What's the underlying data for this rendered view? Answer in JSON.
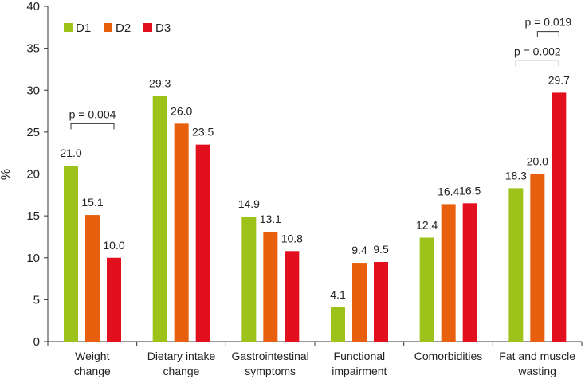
{
  "chart_data": {
    "type": "bar",
    "title": "",
    "xlabel": "",
    "ylabel": "%",
    "ylim": [
      0,
      40
    ],
    "yticks": [
      0,
      5,
      10,
      15,
      20,
      25,
      30,
      35,
      40
    ],
    "grid": false,
    "legend_position": "top-left",
    "categories": [
      [
        "Weight",
        "change"
      ],
      [
        "Dietary intake",
        "change"
      ],
      [
        "Gastrointestinal",
        "symptoms"
      ],
      [
        "Functional",
        "impairment"
      ],
      [
        "Comorbidities"
      ],
      [
        "Fat and muscle",
        "wasting"
      ]
    ],
    "series": [
      {
        "name": "D1",
        "color": "#9dc31b",
        "values": [
          21.0,
          29.3,
          14.9,
          4.1,
          12.4,
          18.3
        ]
      },
      {
        "name": "D2",
        "color": "#e8600e",
        "values": [
          15.1,
          26.0,
          13.1,
          9.4,
          16.4,
          20.0
        ]
      },
      {
        "name": "D3",
        "color": "#e2101e",
        "values": [
          10.0,
          23.5,
          10.8,
          9.5,
          16.5,
          29.7
        ]
      }
    ],
    "annotations": [
      {
        "text": "p = 0.004",
        "category": 0,
        "from_series": 0,
        "to_series": 2,
        "level": 26.0
      },
      {
        "text": "p = 0.002",
        "category": 5,
        "from_series": 0,
        "to_series": 2,
        "level": 33.5
      },
      {
        "text": "p = 0.019",
        "category": 5,
        "from_series": 1,
        "to_series": 2,
        "level": 37.0
      }
    ]
  }
}
